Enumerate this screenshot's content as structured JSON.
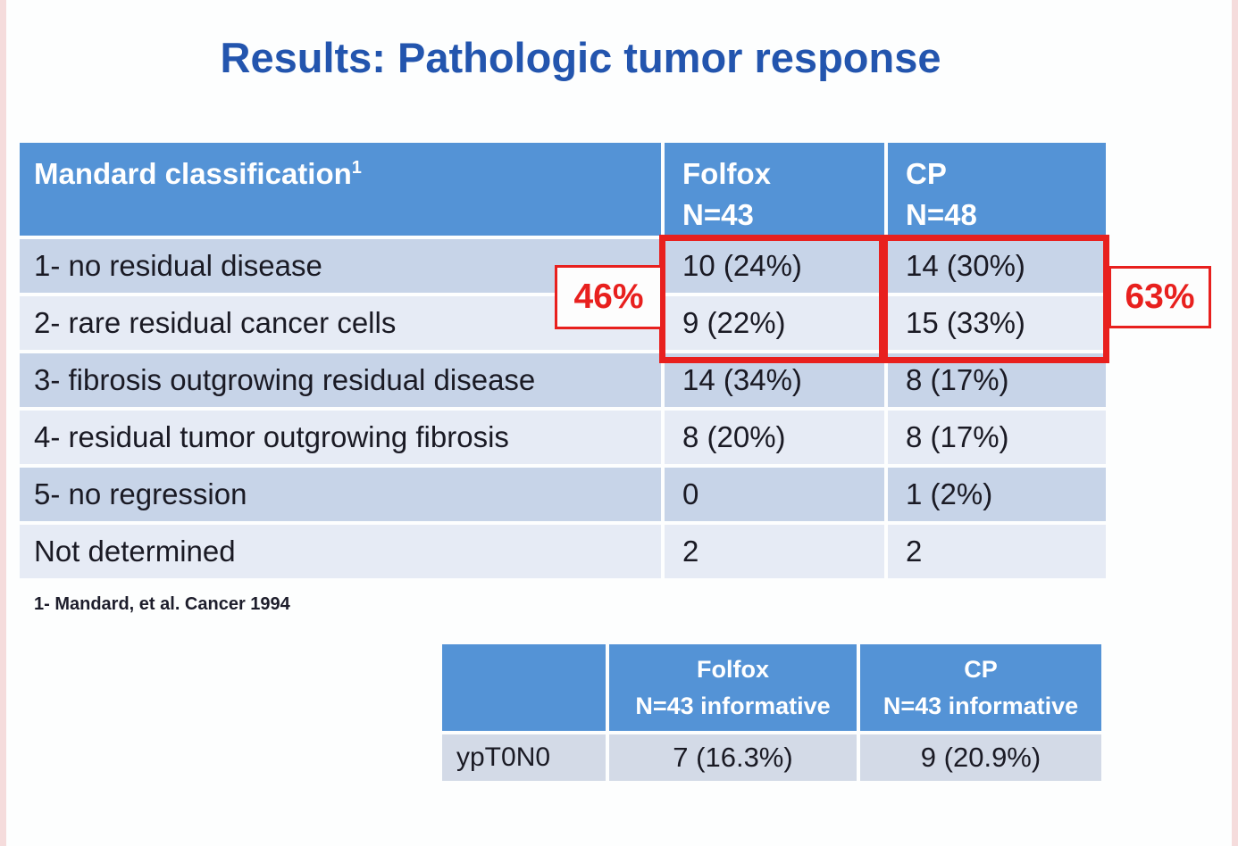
{
  "title": "Results: Pathologic tumor response",
  "colors": {
    "title_blue": "#2355ae",
    "header_blue": "#5493d6",
    "row_dark": "#c7d4e8",
    "row_light": "#e6ebf5",
    "secondary_row": "#d3dae7",
    "accent_red": "#e8201e",
    "cell_text": "#1a1a24"
  },
  "main_table": {
    "header": {
      "label": "Mandard classification",
      "label_sup": "1",
      "folfox_line1": "Folfox",
      "folfox_line2": "N=43",
      "cp_line1": "CP",
      "cp_line2": "N=48"
    },
    "rows": [
      {
        "label": "1- no residual disease",
        "folfox": "10 (24%)",
        "cp": "14 (30%)"
      },
      {
        "label": "2- rare residual cancer cells",
        "folfox": "9 (22%)",
        "cp": "15 (33%)"
      },
      {
        "label": "3- fibrosis outgrowing residual disease",
        "folfox": "14 (34%)",
        "cp": "8 (17%)"
      },
      {
        "label": "4- residual tumor outgrowing fibrosis",
        "folfox": "8 (20%)",
        "cp": "8 (17%)"
      },
      {
        "label": "5- no regression",
        "folfox": "0",
        "cp": "1 (2%)"
      },
      {
        "label": "Not determined",
        "folfox": "2",
        "cp": "2"
      }
    ]
  },
  "callouts": {
    "folfox_pct": "46%",
    "cp_pct": "63%"
  },
  "footnote": "1- Mandard, et al. Cancer 1994",
  "secondary_table": {
    "header": {
      "folfox_line1": "Folfox",
      "folfox_line2": "N=43 informative",
      "cp_line1": "CP",
      "cp_line2": "N=43 informative"
    },
    "rows": [
      {
        "label": "ypT0N0",
        "folfox": "7 (16.3%)",
        "cp": "9 (20.9%)"
      }
    ]
  }
}
